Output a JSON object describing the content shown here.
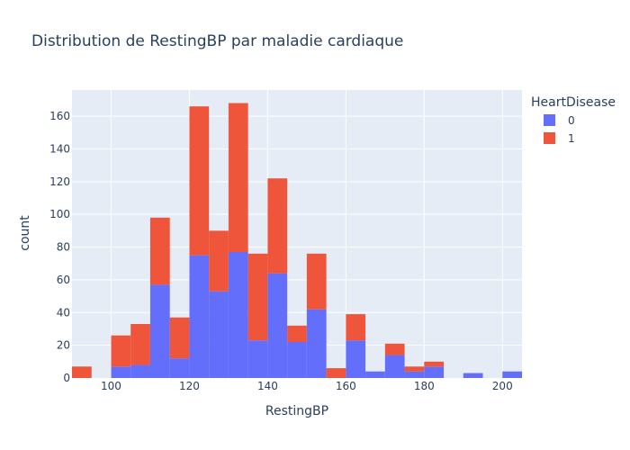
{
  "chart_data": {
    "type": "bar",
    "stacked": true,
    "title": "Distribution de RestingBP par maladie cardiaque",
    "xlabel": "RestingBP",
    "ylabel": "count",
    "xlim": [
      90,
      205
    ],
    "ylim": [
      0,
      176
    ],
    "x_ticks": [
      100,
      120,
      140,
      160,
      180,
      200
    ],
    "y_ticks": [
      0,
      20,
      40,
      60,
      80,
      100,
      120,
      140,
      160
    ],
    "bin_width": 5,
    "bins": [
      90,
      95,
      100,
      105,
      110,
      115,
      120,
      125,
      130,
      135,
      140,
      145,
      150,
      155,
      160,
      165,
      170,
      175,
      180,
      185,
      190,
      195,
      200
    ],
    "legend_title": "HeartDisease",
    "legend_position": "top-right",
    "grid": true,
    "plot_background": "#e5ecf6",
    "series": [
      {
        "name": "0",
        "color": "#636efa",
        "values": [
          0,
          0,
          7,
          8,
          57,
          12,
          75,
          53,
          77,
          23,
          64,
          22,
          42,
          0,
          23,
          4,
          14,
          4,
          7,
          0,
          3,
          0,
          4
        ]
      },
      {
        "name": "1",
        "color": "#ef553b",
        "values": [
          7,
          0,
          19,
          25,
          41,
          25,
          91,
          37,
          91,
          53,
          58,
          10,
          34,
          6,
          16,
          0,
          7,
          3,
          3,
          0,
          0,
          0,
          0
        ]
      }
    ]
  }
}
